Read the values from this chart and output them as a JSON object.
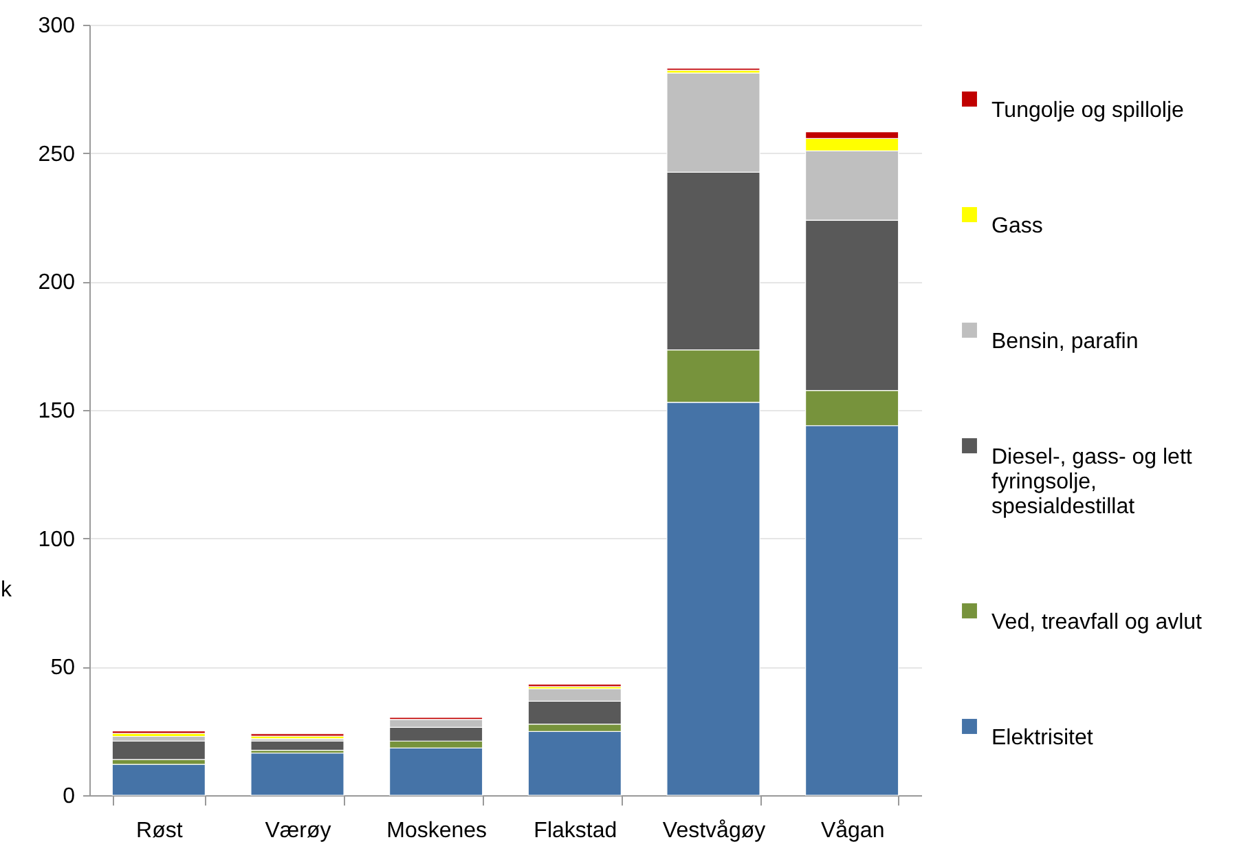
{
  "chart_data": {
    "type": "bar",
    "stacked": true,
    "ylabel": "k",
    "categories": [
      "Røst",
      "Værøy",
      "Moskenes",
      "Flakstad",
      "Vestvågøy",
      "Vågan"
    ],
    "series": [
      {
        "name": "Elektrisitet",
        "color": "#4573a7",
        "values": [
          12.0,
          16.4,
          18.4,
          24.8,
          153.0,
          143.9
        ]
      },
      {
        "name": "Ved, treavfall og avlut",
        "color": "#77933c",
        "values": [
          1.9,
          1.1,
          2.7,
          2.9,
          20.4,
          13.7
        ]
      },
      {
        "name": "Diesel-, gass- og lett fyringsolje, spesialdestillat",
        "color": "#595959",
        "values": [
          7.2,
          3.6,
          5.3,
          8.9,
          69.2,
          66.3
        ]
      },
      {
        "name": "Bensin, parafin",
        "color": "#bfbfbf",
        "values": [
          1.8,
          0.9,
          3.1,
          4.8,
          38.6,
          27.0
        ]
      },
      {
        "name": "Gass",
        "color": "#ffff00",
        "values": [
          1.2,
          1.0,
          null,
          0.9,
          1.1,
          4.8
        ]
      },
      {
        "name": "Tungolje og spillolje",
        "color": "#c00000",
        "values": [
          0.9,
          0.9,
          0.8,
          0.9,
          0.8,
          2.6
        ]
      }
    ],
    "ylim": [
      0,
      300
    ],
    "yticks": [
      0,
      50,
      100,
      150,
      200,
      250,
      300
    ],
    "grid": "y",
    "legend": "right"
  }
}
